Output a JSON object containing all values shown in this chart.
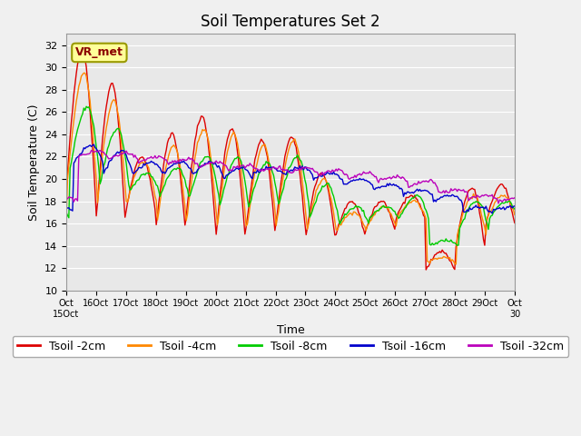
{
  "title": "Soil Temperatures Set 2",
  "xlabel": "Time",
  "ylabel": "Soil Temperature (C)",
  "ylim": [
    10,
    33
  ],
  "yticks": [
    10,
    12,
    14,
    16,
    18,
    20,
    22,
    24,
    26,
    28,
    30,
    32
  ],
  "annotation": "VR_met",
  "colors": {
    "Tsoil -2cm": "#DD0000",
    "Tsoil -4cm": "#FF8800",
    "Tsoil -8cm": "#00CC00",
    "Tsoil -16cm": "#0000CC",
    "Tsoil -32cm": "#BB00BB"
  },
  "legend_labels": [
    "Tsoil -2cm",
    "Tsoil -4cm",
    "Tsoil -8cm",
    "Tsoil -16cm",
    "Tsoil -32cm"
  ],
  "x_tick_labels": [
    "Oct 15",
    "16Oct",
    "17Oct",
    "18Oct",
    "19Oct",
    "20Oct",
    "21Oct",
    "22Oct",
    "23Oct",
    "24Oct",
    "25Oct",
    "26Oct",
    "27Oct",
    "28Oct",
    "29Oct",
    "Oct 30"
  ],
  "title_fontsize": 12,
  "axis_fontsize": 9,
  "tick_fontsize": 8,
  "legend_fontsize": 9,
  "figsize": [
    6.4,
    4.8
  ],
  "dpi": 100
}
